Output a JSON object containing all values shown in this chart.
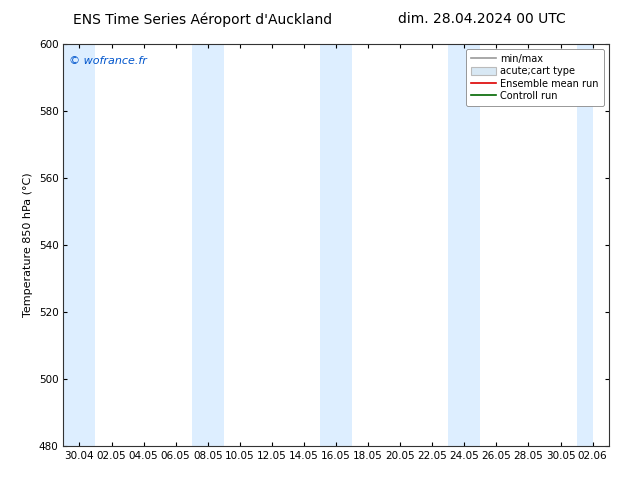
{
  "title_left": "ENS Time Series Aéroport d'Auckland",
  "title_right": "dim. 28.04.2024 00 UTC",
  "ylabel": "Temperature 850 hPa (°C)",
  "watermark": "© wofrance.fr",
  "watermark_color": "#0055cc",
  "ylim": [
    480,
    600
  ],
  "yticks": [
    480,
    500,
    520,
    540,
    560,
    580,
    600
  ],
  "x_labels": [
    "30.04",
    "02.05",
    "04.05",
    "06.05",
    "08.05",
    "10.05",
    "12.05",
    "14.05",
    "16.05",
    "18.05",
    "20.05",
    "22.05",
    "24.05",
    "26.05",
    "28.05",
    "30.05",
    "02.06"
  ],
  "bg_color": "#ffffff",
  "plot_bg_color": "#ffffff",
  "shade_color": "#ddeeff",
  "shade_alpha": 1.0,
  "legend_labels": [
    "min/max",
    "acute;cart type",
    "Ensemble mean run",
    "Controll run"
  ],
  "minmax_color": "#999999",
  "box_color": "#bbbbbb",
  "ensemble_color": "#dd0000",
  "control_color": "#006600",
  "title_fontsize": 10,
  "axis_fontsize": 8,
  "tick_fontsize": 7.5,
  "watermark_fontsize": 8,
  "legend_fontsize": 7
}
